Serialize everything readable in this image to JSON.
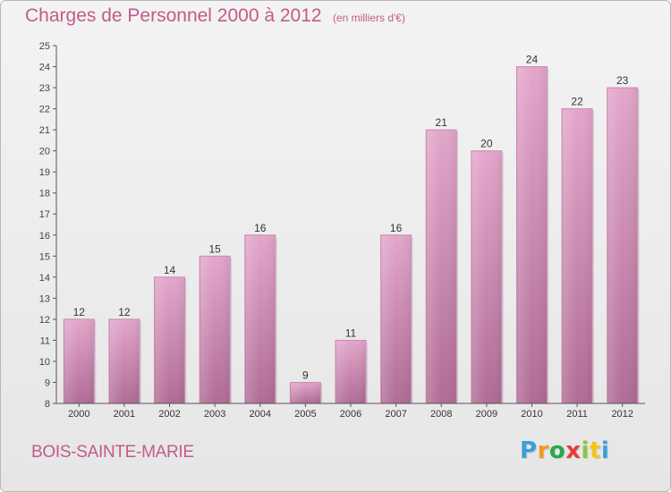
{
  "chart_data": {
    "type": "bar",
    "title": "Charges de Personnel 2000 à 2012",
    "subtitle": "(en milliers d'€)",
    "categories": [
      "2000",
      "2001",
      "2002",
      "2003",
      "2004",
      "2005",
      "2006",
      "2007",
      "2008",
      "2009",
      "2010",
      "2011",
      "2012"
    ],
    "values": [
      12,
      12,
      14,
      15,
      16,
      9,
      11,
      16,
      21,
      20,
      24,
      22,
      23
    ],
    "ylim": [
      8,
      25
    ],
    "yticks": [
      8,
      9,
      10,
      11,
      12,
      13,
      14,
      15,
      16,
      17,
      18,
      19,
      20,
      21,
      22,
      23,
      24,
      25
    ],
    "grid": false,
    "bar_color": "#d48cb6",
    "xlabel": "",
    "ylabel": ""
  },
  "footer": {
    "place_name": "BOIS-SAINTE-MARIE",
    "logo": {
      "letters": [
        "P",
        "r",
        "o",
        "x",
        "i",
        "t",
        "i"
      ],
      "colors": [
        "#3aa0d8",
        "#f29a1a",
        "#2aa84a",
        "#e63c3c",
        "#8cc63f",
        "#f5c518",
        "#3aa0d8"
      ]
    }
  }
}
